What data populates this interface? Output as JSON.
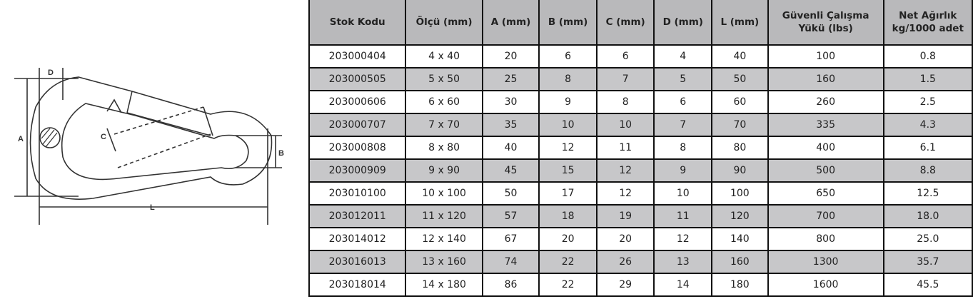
{
  "diagram": {
    "labels": {
      "a": "A",
      "b": "B",
      "c": "C",
      "d": "D",
      "l": "L"
    }
  },
  "table": {
    "headers": [
      "Stok Kodu",
      "Ölçü (mm)",
      "A (mm)",
      "B (mm)",
      "C (mm)",
      "D (mm)",
      "L (mm)",
      "Güvenli Çalışma Yükü (lbs)",
      "Net Ağırlık kg/1000 adet"
    ],
    "rows": [
      [
        "203000404",
        "4 x 40",
        "20",
        "6",
        "6",
        "4",
        "40",
        "100",
        "0.8"
      ],
      [
        "203000505",
        "5 x 50",
        "25",
        "8",
        "7",
        "5",
        "50",
        "160",
        "1.5"
      ],
      [
        "203000606",
        "6 x 60",
        "30",
        "9",
        "8",
        "6",
        "60",
        "260",
        "2.5"
      ],
      [
        "203000707",
        "7 x 70",
        "35",
        "10",
        "10",
        "7",
        "70",
        "335",
        "4.3"
      ],
      [
        "203000808",
        "8 x 80",
        "40",
        "12",
        "11",
        "8",
        "80",
        "400",
        "6.1"
      ],
      [
        "203000909",
        "9 x 90",
        "45",
        "15",
        "12",
        "9",
        "90",
        "500",
        "8.8"
      ],
      [
        "203010100",
        "10 x 100",
        "50",
        "17",
        "12",
        "10",
        "100",
        "650",
        "12.5"
      ],
      [
        "203012011",
        "11 x 120",
        "57",
        "18",
        "19",
        "11",
        "120",
        "700",
        "18.0"
      ],
      [
        "203014012",
        "12 x 140",
        "67",
        "20",
        "20",
        "12",
        "140",
        "800",
        "25.0"
      ],
      [
        "203016013",
        "13 x 160",
        "74",
        "22",
        "26",
        "13",
        "160",
        "1300",
        "35.7"
      ],
      [
        "203018014",
        "14 x 180",
        "86",
        "22",
        "29",
        "14",
        "180",
        "1600",
        "45.5"
      ]
    ]
  }
}
